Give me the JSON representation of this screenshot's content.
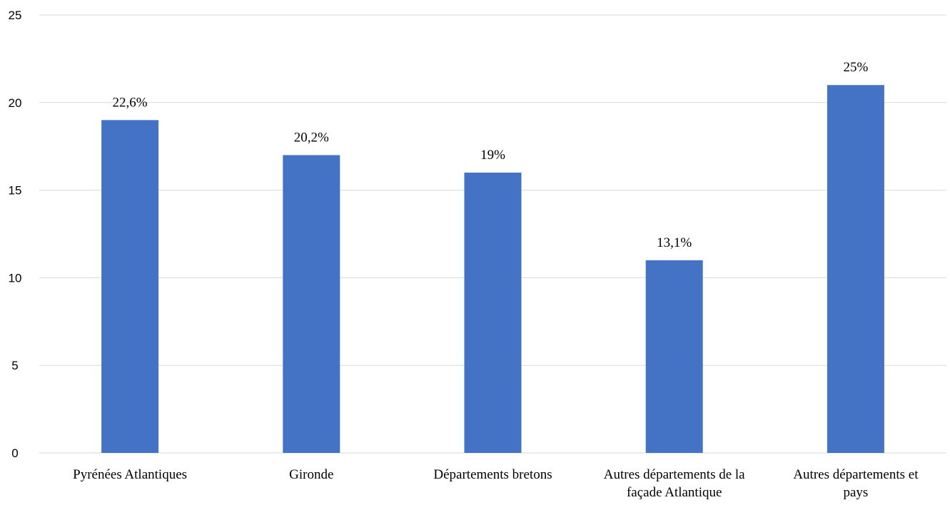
{
  "chart_data": {
    "type": "bar",
    "categories": [
      [
        "Pyrénées Atlantiques"
      ],
      [
        "Gironde"
      ],
      [
        "Départements bretons"
      ],
      [
        "Autres départements de la",
        "façade Atlantique"
      ],
      [
        "Autres départements et",
        "pays"
      ]
    ],
    "series": [
      {
        "values": [
          19,
          17,
          16,
          11,
          21
        ],
        "data_labels": [
          "22,6%",
          "20,2%",
          "19%",
          "13,1%",
          "25%"
        ]
      }
    ],
    "ylim": [
      0,
      25
    ],
    "yticks": [
      0,
      5,
      10,
      15,
      20,
      25
    ],
    "grid": true,
    "legend": "none",
    "colors": {
      "bar": "#4472C4",
      "grid": "#D9D9D9",
      "axis": "#D9D9D9",
      "text": "#000000"
    }
  }
}
